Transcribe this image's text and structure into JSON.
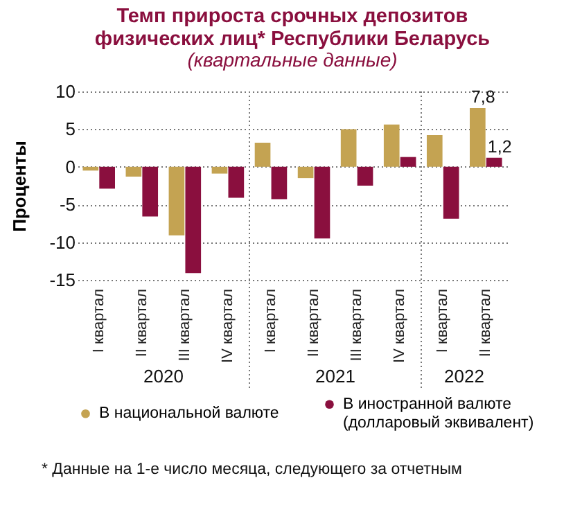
{
  "chart_data": {
    "type": "bar",
    "title": "Темп прироста срочных депозитов физических лиц* Республики Беларусь",
    "subtitle": "(квартальные данные)",
    "ylabel": "Проценты",
    "categories": [
      "I квартал",
      "II квартал",
      "III квартал",
      "IV квартал",
      "I квартал",
      "II квартал",
      "III квартал",
      "IV квартал",
      "I квартал",
      "II квартал"
    ],
    "series": [
      {
        "name": "В национальной валюте",
        "color": "#c4a352",
        "values": [
          -0.5,
          -1.3,
          -9.1,
          -0.9,
          3.2,
          -1.5,
          5.0,
          5.6,
          4.2,
          7.8
        ],
        "value_labels": [
          null,
          null,
          null,
          null,
          null,
          null,
          null,
          null,
          null,
          "7,8"
        ]
      },
      {
        "name": "В иностранной валюте (долларовый эквивалент)",
        "color": "#8a0f3e",
        "values": [
          -2.9,
          -6.6,
          -14.1,
          -4.1,
          -4.3,
          -9.5,
          -2.5,
          1.3,
          -6.9,
          1.2
        ],
        "value_labels": [
          null,
          null,
          null,
          null,
          null,
          null,
          null,
          null,
          null,
          "1,2"
        ]
      }
    ],
    "ylim": [
      -15,
      10
    ],
    "yticks": [
      -15,
      -10,
      -5,
      0,
      5,
      10
    ],
    "grid": "y",
    "legend": "bottom",
    "annotations": [
      "2020",
      "2021",
      "2022",
      "* Данные на 1-е число месяца, следующего за отчетным"
    ]
  }
}
